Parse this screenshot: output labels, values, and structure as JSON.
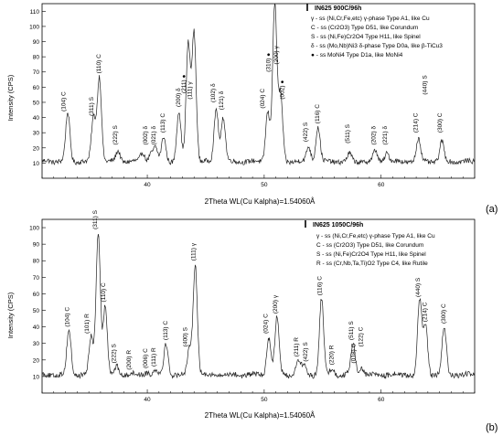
{
  "chart_data": [
    {
      "panel_label": "(a)",
      "type": "line",
      "xlabel": "2Theta WL(Cu Kalpha)=1.54060Å",
      "ylabel": "Intensity (CPS)",
      "xlim": [
        31,
        68
      ],
      "ylim": [
        0,
        115
      ],
      "x_ticks": [
        40,
        50,
        60
      ],
      "y_ticks": [
        10,
        20,
        30,
        40,
        50,
        60,
        70,
        80,
        90,
        100,
        110
      ],
      "legend": {
        "title": "IN625  900C/96h",
        "entries": [
          "γ - ss (Ni,Cr,Fe,etc)  γ-phase    Type A1, like Cu",
          "C - ss (Cr2O3)    Type D51, like Corundum",
          "S - ss (Ni,Fe)Cr2O4    Type H11, like Spinel",
          "δ - ss (Mo,Nb)Ni3  δ-phase  Type D0a, like β-TiCu3",
          "● - ss MoNi4    Type D1a, like MoNi4"
        ]
      },
      "peaks": [
        {
          "x": 31.5,
          "y": 12
        },
        {
          "x": 33.2,
          "y": 43
        },
        {
          "x": 35.4,
          "y": 40
        },
        {
          "x": 35.9,
          "y": 67
        },
        {
          "x": 37.5,
          "y": 18
        },
        {
          "x": 39.6,
          "y": 17
        },
        {
          "x": 40.3,
          "y": 16
        },
        {
          "x": 40.7,
          "y": 20
        },
        {
          "x": 41.4,
          "y": 27
        },
        {
          "x": 42.7,
          "y": 44
        },
        {
          "x": 43.5,
          "y": 88
        },
        {
          "x": 44.0,
          "y": 96
        },
        {
          "x": 45.9,
          "y": 46
        },
        {
          "x": 46.5,
          "y": 40
        },
        {
          "x": 50.3,
          "y": 44
        },
        {
          "x": 50.9,
          "y": 115
        },
        {
          "x": 51.4,
          "y": 55
        },
        {
          "x": 53.8,
          "y": 21
        },
        {
          "x": 54.6,
          "y": 34
        },
        {
          "x": 57.3,
          "y": 16
        },
        {
          "x": 59.5,
          "y": 18
        },
        {
          "x": 60.5,
          "y": 17
        },
        {
          "x": 63.2,
          "y": 26
        },
        {
          "x": 65.2,
          "y": 24
        }
      ],
      "annotations": [
        {
          "text": "(104) C",
          "x": 33.0,
          "y": 44
        },
        {
          "text": "(311) S",
          "x": 35.4,
          "y": 41
        },
        {
          "text": "(110) C",
          "x": 36.0,
          "y": 69
        },
        {
          "text": "(222) S",
          "x": 37.4,
          "y": 22
        },
        {
          "text": "(002) δ",
          "x": 40.0,
          "y": 22
        },
        {
          "text": "(021) δ",
          "x": 40.7,
          "y": 22
        },
        {
          "text": "(113) C",
          "x": 41.5,
          "y": 30
        },
        {
          "text": "(200) δ",
          "x": 42.8,
          "y": 47
        },
        {
          "text": "(211) ●",
          "x": 43.3,
          "y": 56
        },
        {
          "text": "(111) γ",
          "x": 43.8,
          "y": 52
        },
        {
          "text": "(102) δ",
          "x": 45.8,
          "y": 50
        },
        {
          "text": "(121) δ",
          "x": 46.5,
          "y": 45
        },
        {
          "text": "(024) C",
          "x": 50.0,
          "y": 46
        },
        {
          "text": "(310) ●",
          "x": 50.5,
          "y": 70
        },
        {
          "text": "(200) γ",
          "x": 51.2,
          "y": 75
        },
        {
          "text": "(002) ●",
          "x": 51.7,
          "y": 52
        },
        {
          "text": "(422) S",
          "x": 53.7,
          "y": 24
        },
        {
          "text": "(116) C",
          "x": 54.7,
          "y": 36
        },
        {
          "text": "(511) S",
          "x": 57.3,
          "y": 23
        },
        {
          "text": "(202) δ",
          "x": 59.5,
          "y": 22
        },
        {
          "text": "(221) δ",
          "x": 60.5,
          "y": 22
        },
        {
          "text": "(214) C",
          "x": 63.1,
          "y": 30
        },
        {
          "text": "(440) S",
          "x": 63.9,
          "y": 55
        },
        {
          "text": "(300) C",
          "x": 65.2,
          "y": 30
        }
      ]
    },
    {
      "panel_label": "(b)",
      "type": "line",
      "xlabel": "2Theta WL(Cu Kalpha)=1.54060Å",
      "ylabel": "Intensity (CPS)",
      "xlim": [
        31,
        68
      ],
      "ylim": [
        0,
        105
      ],
      "x_ticks": [
        40,
        50,
        60
      ],
      "y_ticks": [
        10,
        20,
        30,
        40,
        50,
        60,
        70,
        80,
        90,
        100
      ],
      "legend": {
        "title": "IN625  1050C/96h",
        "entries": [
          "γ - ss (Ni,Cr,Fe,etc)  γ-phase    Type A1, like Cu",
          "C - ss (Cr2O3)    Type D51, like Corundum",
          "S - ss (Ni,Fe)Cr2O4    Type H11, like Spinel",
          "R - ss (Cr,Nb,Ta,Ti)O2    Type C4, like Rutile"
        ]
      },
      "peaks": [
        {
          "x": 31.7,
          "y": 11
        },
        {
          "x": 33.3,
          "y": 38
        },
        {
          "x": 35.2,
          "y": 34
        },
        {
          "x": 35.8,
          "y": 97
        },
        {
          "x": 36.4,
          "y": 53
        },
        {
          "x": 37.4,
          "y": 16
        },
        {
          "x": 38.6,
          "y": 12
        },
        {
          "x": 40.0,
          "y": 13
        },
        {
          "x": 40.7,
          "y": 14
        },
        {
          "x": 41.6,
          "y": 30
        },
        {
          "x": 43.6,
          "y": 26
        },
        {
          "x": 44.1,
          "y": 78
        },
        {
          "x": 50.4,
          "y": 34
        },
        {
          "x": 51.1,
          "y": 46
        },
        {
          "x": 52.9,
          "y": 20
        },
        {
          "x": 53.4,
          "y": 17
        },
        {
          "x": 54.9,
          "y": 57
        },
        {
          "x": 55.8,
          "y": 15
        },
        {
          "x": 57.6,
          "y": 30
        },
        {
          "x": 58.3,
          "y": 16
        },
        {
          "x": 63.3,
          "y": 56
        },
        {
          "x": 63.8,
          "y": 41
        },
        {
          "x": 65.4,
          "y": 40
        }
      ],
      "annotations": [
        {
          "text": "(104) C",
          "x": 33.3,
          "y": 40
        },
        {
          "text": "(101) R",
          "x": 35.0,
          "y": 36
        },
        {
          "text": "(311) S",
          "x": 35.7,
          "y": 99
        },
        {
          "text": "(110) C",
          "x": 36.4,
          "y": 55
        },
        {
          "text": "(222) S",
          "x": 37.3,
          "y": 18
        },
        {
          "text": "(200) R",
          "x": 38.6,
          "y": 14
        },
        {
          "text": "(006) C",
          "x": 40.0,
          "y": 15
        },
        {
          "text": "(111) R",
          "x": 40.7,
          "y": 16
        },
        {
          "text": "(113) C",
          "x": 41.7,
          "y": 32
        },
        {
          "text": "(400) S",
          "x": 43.4,
          "y": 28
        },
        {
          "text": "(111) γ",
          "x": 44.1,
          "y": 80
        },
        {
          "text": "(024) C",
          "x": 50.3,
          "y": 36
        },
        {
          "text": "(200) γ",
          "x": 51.1,
          "y": 48
        },
        {
          "text": "(211) R",
          "x": 52.9,
          "y": 22
        },
        {
          "text": "(422) S",
          "x": 53.7,
          "y": 19
        },
        {
          "text": "(116) C",
          "x": 54.9,
          "y": 59
        },
        {
          "text": "(220) R",
          "x": 55.9,
          "y": 17
        },
        {
          "text": "(511) S",
          "x": 57.6,
          "y": 32
        },
        {
          "text": "(018) C",
          "x": 57.8,
          "y": 18
        },
        {
          "text": "(122) C",
          "x": 58.4,
          "y": 28
        },
        {
          "text": "(440) S",
          "x": 63.3,
          "y": 58
        },
        {
          "text": "(214) C",
          "x": 63.9,
          "y": 43
        },
        {
          "text": "(300) C",
          "x": 65.5,
          "y": 42
        }
      ]
    }
  ]
}
